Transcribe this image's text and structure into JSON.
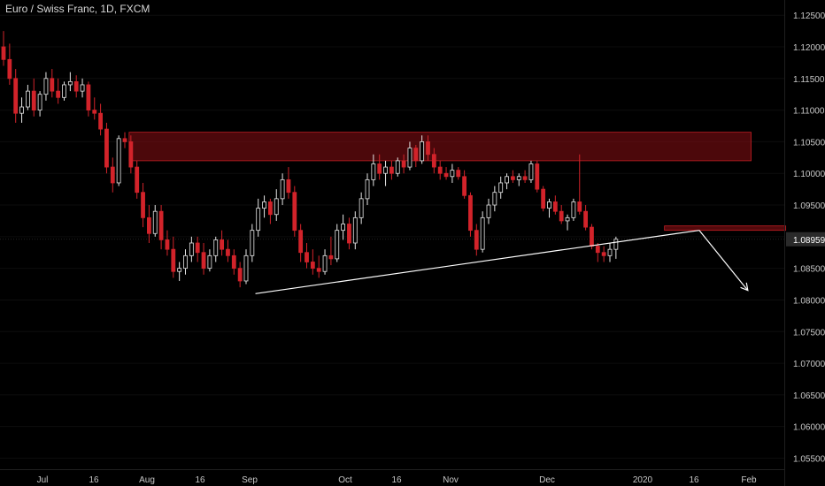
{
  "chart_data": {
    "type": "candlestick",
    "title": "Euro / Swiss Franc, 1D, FXCM",
    "colors": {
      "up": "#e6e6e6",
      "down": "#d2232a",
      "background": "#000000",
      "zone": "#8b0f14"
    },
    "ylim": [
      1.0506,
      1.1274
    ],
    "y_ticks": [
      "1.12500",
      "1.12000",
      "1.11500",
      "1.11000",
      "1.10500",
      "1.10000",
      "1.09500",
      "1.09000",
      "1.08500",
      "1.08000",
      "1.07500",
      "1.07000",
      "1.06500",
      "1.06000",
      "1.05500"
    ],
    "x_ticks": [
      "Jul",
      "16",
      "Aug",
      "16",
      "Sep",
      "Oct",
      "16",
      "Nov",
      "Dec",
      "2020",
      "16",
      "Feb"
    ],
    "last_price": "1.08959",
    "candles": [
      [
        1.12,
        1.1225,
        1.117,
        1.118
      ],
      [
        1.118,
        1.1205,
        1.114,
        1.115
      ],
      [
        1.115,
        1.1165,
        1.108,
        1.1095
      ],
      [
        1.1095,
        1.112,
        1.108,
        1.1105
      ],
      [
        1.1105,
        1.114,
        1.11,
        1.113
      ],
      [
        1.113,
        1.115,
        1.109,
        1.11
      ],
      [
        1.11,
        1.113,
        1.109,
        1.1125
      ],
      [
        1.1125,
        1.116,
        1.1115,
        1.115
      ],
      [
        1.115,
        1.1165,
        1.112,
        1.113
      ],
      [
        1.113,
        1.115,
        1.111,
        1.112
      ],
      [
        1.112,
        1.1145,
        1.1115,
        1.114
      ],
      [
        1.114,
        1.116,
        1.113,
        1.1145
      ],
      [
        1.1145,
        1.1155,
        1.112,
        1.113
      ],
      [
        1.113,
        1.115,
        1.112,
        1.114
      ],
      [
        1.114,
        1.1145,
        1.109,
        1.11
      ],
      [
        1.11,
        1.112,
        1.1085,
        1.1095
      ],
      [
        1.1095,
        1.111,
        1.106,
        1.107
      ],
      [
        1.107,
        1.108,
        1.1,
        1.101
      ],
      [
        1.101,
        1.1025,
        1.097,
        1.0985
      ],
      [
        1.0985,
        1.106,
        1.098,
        1.1055
      ],
      [
        1.1055,
        1.1065,
        1.104,
        1.105
      ],
      [
        1.105,
        1.106,
        1.1,
        1.101
      ],
      [
        1.101,
        1.102,
        1.096,
        1.097
      ],
      [
        1.097,
        1.0985,
        1.0915,
        1.093
      ],
      [
        1.093,
        1.095,
        1.089,
        1.0905
      ],
      [
        1.0905,
        1.095,
        1.09,
        1.094
      ],
      [
        1.094,
        1.095,
        1.088,
        1.0895
      ],
      [
        1.0895,
        1.091,
        1.087,
        1.088
      ],
      [
        1.088,
        1.09,
        1.0835,
        1.0845
      ],
      [
        1.0845,
        1.086,
        1.083,
        1.085
      ],
      [
        1.085,
        1.088,
        1.084,
        1.087
      ],
      [
        1.087,
        1.09,
        1.086,
        1.089
      ],
      [
        1.089,
        1.09,
        1.086,
        1.0875
      ],
      [
        1.0875,
        1.089,
        1.084,
        1.085
      ],
      [
        1.085,
        1.088,
        1.0845,
        1.087
      ],
      [
        1.087,
        1.09,
        1.086,
        1.0895
      ],
      [
        1.0895,
        1.091,
        1.087,
        1.088
      ],
      [
        1.088,
        1.0895,
        1.086,
        1.087
      ],
      [
        1.087,
        1.088,
        1.084,
        1.085
      ],
      [
        1.085,
        1.086,
        1.082,
        1.083
      ],
      [
        1.083,
        1.088,
        1.0825,
        1.087
      ],
      [
        1.087,
        1.092,
        1.086,
        1.091
      ],
      [
        1.091,
        1.096,
        1.09,
        1.0945
      ],
      [
        1.0945,
        1.0965,
        1.093,
        1.0955
      ],
      [
        1.0955,
        1.096,
        1.092,
        1.0935
      ],
      [
        1.0935,
        1.0975,
        1.0925,
        1.096
      ],
      [
        1.096,
        1.1,
        1.095,
        1.099
      ],
      [
        1.099,
        1.101,
        1.096,
        1.097
      ],
      [
        1.097,
        1.098,
        1.09,
        1.091
      ],
      [
        1.091,
        1.092,
        1.086,
        1.0875
      ],
      [
        1.0875,
        1.089,
        1.085,
        1.086
      ],
      [
        1.086,
        1.088,
        1.084,
        1.085
      ],
      [
        1.085,
        1.087,
        1.0835,
        1.0845
      ],
      [
        1.0845,
        1.088,
        1.084,
        1.087
      ],
      [
        1.087,
        1.09,
        1.0855,
        1.0865
      ],
      [
        1.0865,
        1.092,
        1.086,
        1.091
      ],
      [
        1.091,
        1.0935,
        1.0895,
        1.092
      ],
      [
        1.092,
        1.093,
        1.088,
        1.089
      ],
      [
        1.089,
        1.094,
        1.088,
        1.093
      ],
      [
        1.093,
        1.097,
        1.092,
        1.096
      ],
      [
        1.096,
        1.1,
        1.095,
        1.099
      ],
      [
        1.099,
        1.103,
        1.098,
        1.1015
      ],
      [
        1.1015,
        1.103,
        1.099,
        1.1
      ],
      [
        1.1,
        1.102,
        1.098,
        1.101
      ],
      [
        1.101,
        1.102,
        1.099,
        1.1
      ],
      [
        1.1,
        1.1025,
        1.0995,
        1.102
      ],
      [
        1.102,
        1.103,
        1.1,
        1.101
      ],
      [
        1.101,
        1.105,
        1.1005,
        1.104
      ],
      [
        1.104,
        1.1045,
        1.101,
        1.102
      ],
      [
        1.102,
        1.106,
        1.1015,
        1.105
      ],
      [
        1.105,
        1.106,
        1.102,
        1.103
      ],
      [
        1.103,
        1.104,
        1.1,
        1.101
      ],
      [
        1.101,
        1.102,
        1.099,
        1.1
      ],
      [
        1.1,
        1.101,
        1.099,
        1.0995
      ],
      [
        1.0995,
        1.1015,
        1.0985,
        1.1005
      ],
      [
        1.1005,
        1.101,
        1.099,
        1.0995
      ],
      [
        1.0995,
        1.1005,
        1.096,
        1.0965
      ],
      [
        1.0965,
        1.097,
        1.09,
        1.091
      ],
      [
        1.091,
        1.092,
        1.087,
        1.088
      ],
      [
        1.088,
        1.094,
        1.0875,
        1.093
      ],
      [
        1.093,
        1.096,
        1.092,
        1.095
      ],
      [
        1.095,
        1.098,
        1.094,
        1.097
      ],
      [
        1.097,
        1.0995,
        1.096,
        1.0985
      ],
      [
        1.0985,
        1.1,
        1.0975,
        1.0995
      ],
      [
        1.0995,
        1.1005,
        1.0985,
        1.099
      ],
      [
        1.099,
        1.1,
        1.098,
        1.0995
      ],
      [
        1.0995,
        1.1005,
        1.0985,
        1.099
      ],
      [
        1.099,
        1.102,
        1.0985,
        1.1015
      ],
      [
        1.1015,
        1.102,
        1.097,
        1.0975
      ],
      [
        1.0975,
        1.098,
        1.094,
        1.0945
      ],
      [
        1.0945,
        1.096,
        1.093,
        1.0955
      ],
      [
        1.0955,
        1.0965,
        1.0935,
        1.094
      ],
      [
        1.094,
        1.095,
        1.092,
        1.0925
      ],
      [
        1.0925,
        1.0935,
        1.091,
        1.093
      ],
      [
        1.093,
        1.096,
        1.0925,
        1.0955
      ],
      [
        1.0955,
        1.103,
        1.0935,
        1.094
      ],
      [
        1.094,
        1.095,
        1.091,
        1.0915
      ],
      [
        1.0915,
        1.092,
        1.088,
        1.0885
      ],
      [
        1.0885,
        1.089,
        1.086,
        1.0875
      ],
      [
        1.0875,
        1.0885,
        1.086,
        1.087
      ],
      [
        1.087,
        1.089,
        1.086,
        1.088
      ],
      [
        1.088,
        1.09,
        1.0865,
        1.0896
      ]
    ],
    "annotations": {
      "resistance_zone": {
        "x_from_candle": 21,
        "x_to_candle": 123,
        "y_from": 1.102,
        "y_to": 1.1065
      },
      "small_zone": {
        "x_from_candle": 109,
        "x_to_candle": 129,
        "y_from": 1.091,
        "y_to": 1.0917
      },
      "trendline": {
        "from_candle": 43,
        "from_y": 1.081,
        "to_candle": 114,
        "to_y": 1.091
      },
      "arrow": {
        "from_candle": 114,
        "from_y": 1.091,
        "to_candle": 121,
        "to_y": 1.0815
      }
    }
  }
}
